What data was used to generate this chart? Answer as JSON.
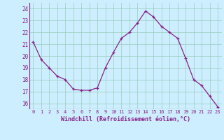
{
  "x": [
    0,
    1,
    2,
    3,
    4,
    5,
    6,
    7,
    8,
    9,
    10,
    11,
    12,
    13,
    14,
    15,
    16,
    17,
    18,
    19,
    20,
    21,
    22,
    23
  ],
  "y": [
    21.2,
    19.7,
    19.0,
    18.3,
    18.0,
    17.2,
    17.1,
    17.1,
    17.3,
    19.0,
    20.3,
    21.5,
    22.0,
    22.8,
    23.8,
    23.3,
    22.5,
    22.0,
    21.5,
    19.8,
    18.0,
    17.5,
    16.6,
    15.7
  ],
  "line_color": "#882288",
  "marker": "+",
  "markersize": 3.5,
  "linewidth": 0.9,
  "bg_color": "#cceeff",
  "grid_color": "#99ccbb",
  "xlabel": "Windchill (Refroidissement éolien,°C)",
  "xlabel_color": "#882288",
  "tick_color": "#882288",
  "ylabel_ticks": [
    16,
    17,
    18,
    19,
    20,
    21,
    22,
    23,
    24
  ],
  "ylim": [
    15.5,
    24.5
  ],
  "xlim": [
    -0.5,
    23.5
  ],
  "xtick_fontsize": 5.0,
  "ytick_fontsize": 5.5,
  "xlabel_fontsize": 6.0
}
